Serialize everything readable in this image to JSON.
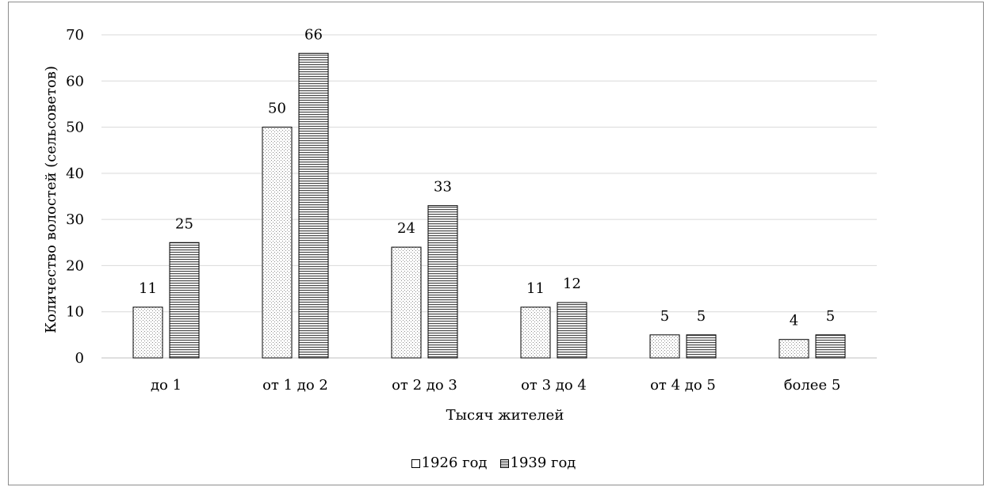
{
  "chart_data": {
    "type": "bar",
    "title": "",
    "xlabel": "Тысяч жителей",
    "ylabel": "Количество волостей (сельсоветов)",
    "ylim": [
      0,
      70
    ],
    "yticks": [
      0,
      10,
      20,
      30,
      40,
      50,
      60,
      70
    ],
    "grid": true,
    "legend_position": "bottom",
    "categories": [
      "до 1",
      "от 1 до 2",
      "от 2 до 3",
      "от 3 до 4",
      "от 4 до 5",
      "более 5"
    ],
    "series": [
      {
        "name": "1926 год",
        "values": [
          11,
          50,
          24,
          11,
          5,
          4
        ],
        "pattern": "dotted"
      },
      {
        "name": "1939 год",
        "values": [
          25,
          66,
          33,
          12,
          5,
          5
        ],
        "pattern": "horizontal-lines"
      }
    ],
    "colors": {
      "grid": "#d9d9d9",
      "bar_outline": "#000000",
      "frame": "#8c8c8c"
    }
  }
}
